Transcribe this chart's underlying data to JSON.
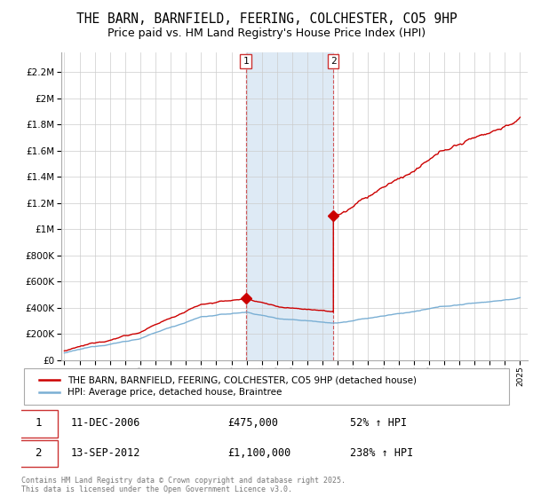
{
  "title": "THE BARN, BARNFIELD, FEERING, COLCHESTER, CO5 9HP",
  "subtitle": "Price paid vs. HM Land Registry's House Price Index (HPI)",
  "title_fontsize": 10.5,
  "subtitle_fontsize": 9,
  "background_color": "#ffffff",
  "red_color": "#cc0000",
  "blue_color": "#7aafd4",
  "shade_color": "#deeaf5",
  "purchase1_x": 2006.94,
  "purchase1_y": 475000,
  "purchase2_x": 2012.71,
  "purchase2_y": 1100000,
  "purchase1_label": "11-DEC-2006",
  "purchase2_label": "13-SEP-2012",
  "purchase1_price": "£475,000",
  "purchase2_price": "£1,100,000",
  "purchase1_hpi": "52% ↑ HPI",
  "purchase2_hpi": "238% ↑ HPI",
  "legend_line1": "THE BARN, BARNFIELD, FEERING, COLCHESTER, CO5 9HP (detached house)",
  "legend_line2": "HPI: Average price, detached house, Braintree",
  "footer1": "Contains HM Land Registry data © Crown copyright and database right 2025.",
  "footer2": "This data is licensed under the Open Government Licence v3.0.",
  "ylim": [
    0,
    2350000
  ],
  "xlim": [
    1994.8,
    2025.5
  ],
  "yticks": [
    0,
    200000,
    400000,
    600000,
    800000,
    1000000,
    1200000,
    1400000,
    1600000,
    1800000,
    2000000,
    2200000
  ]
}
